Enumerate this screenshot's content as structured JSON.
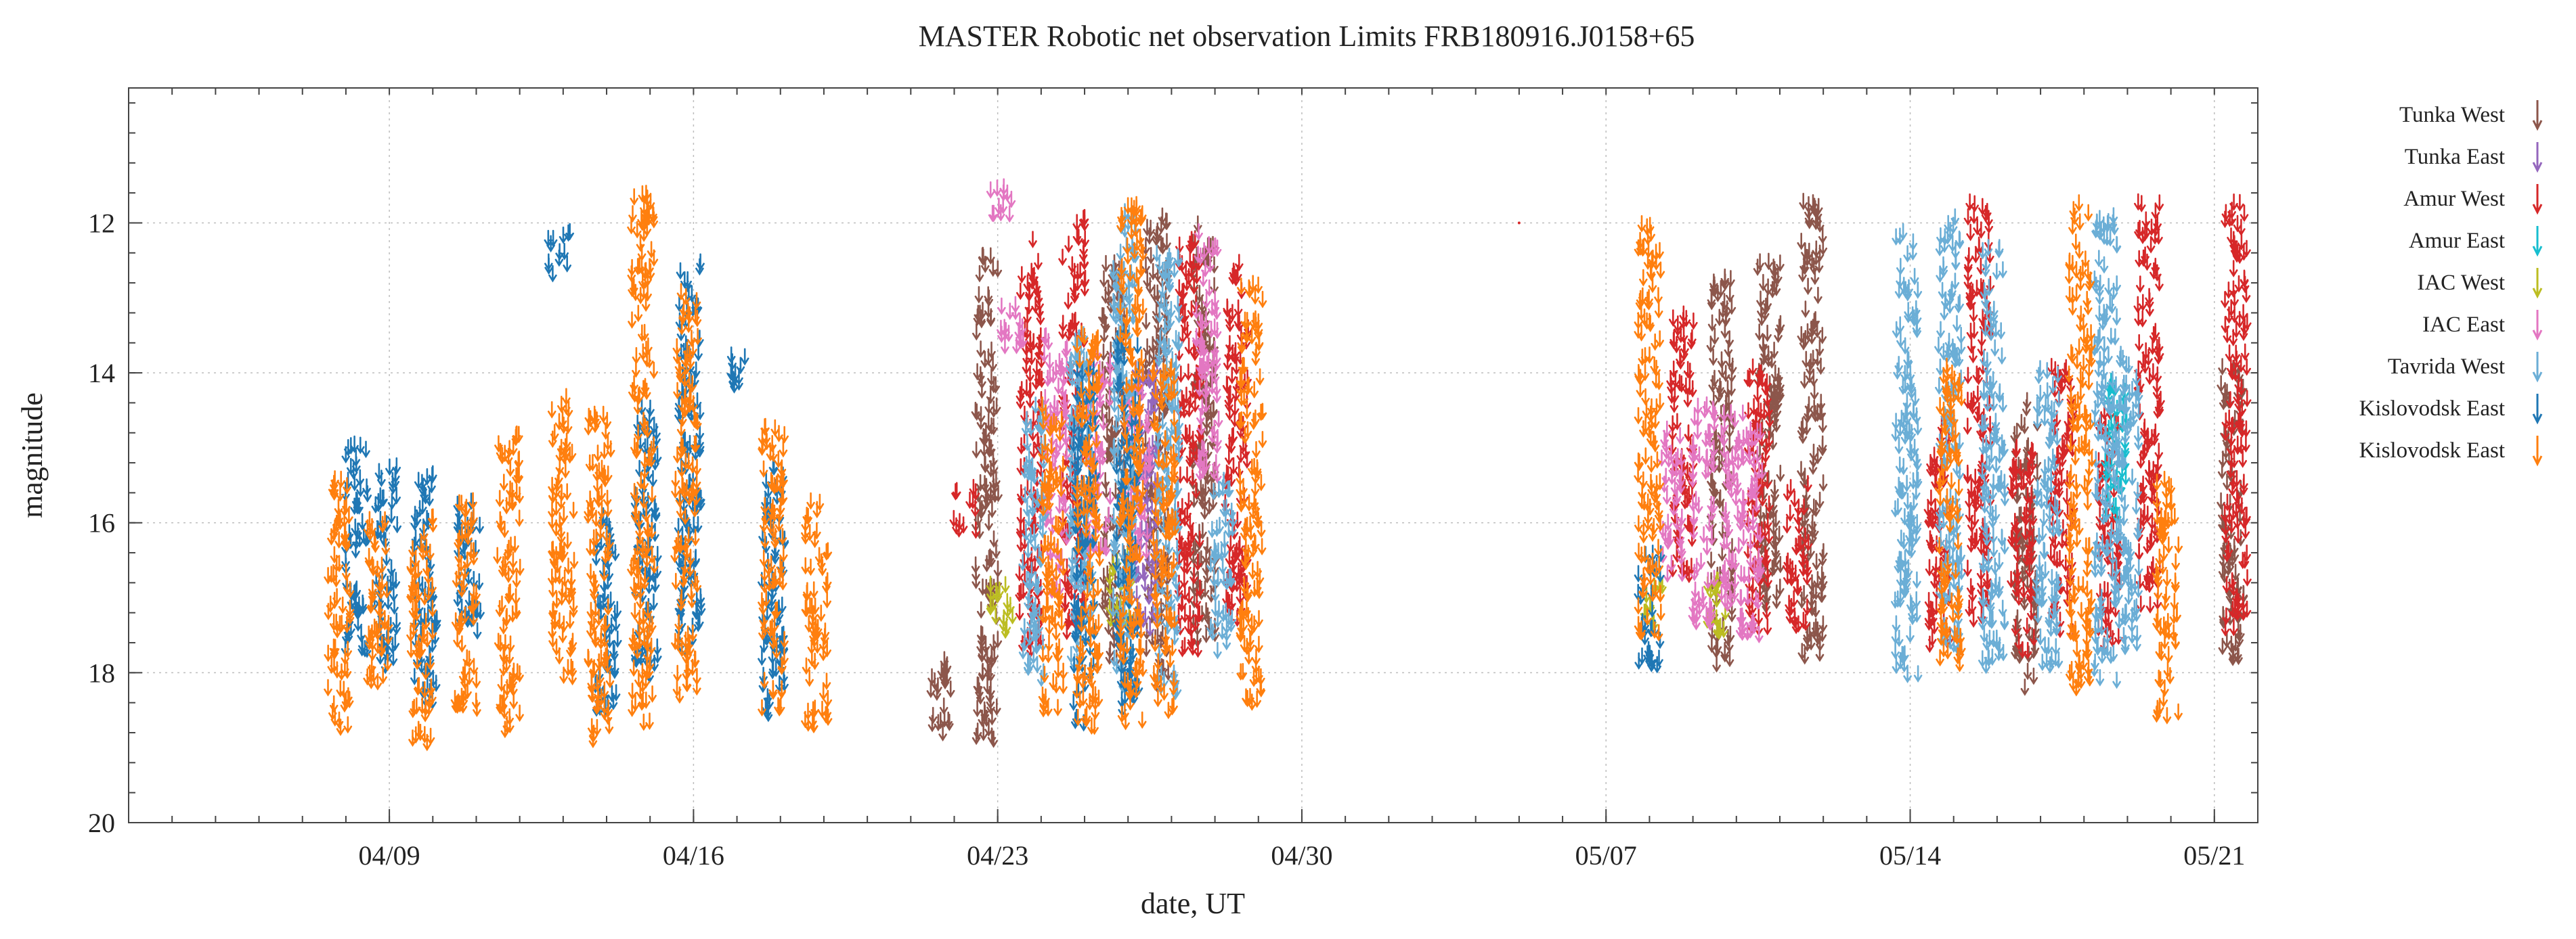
{
  "chart_data": {
    "type": "scatter",
    "marker": "down-arrow",
    "title": "MASTER Robotic net observation Limits  FRB180916.J0158+65",
    "xlabel": "date, UT",
    "ylabel": "magnitude",
    "x_domain": [
      "2019-04-03",
      "2019-05-22"
    ],
    "x_ticks": [
      {
        "date": "2019-04-09",
        "label": "04/09"
      },
      {
        "date": "2019-04-16",
        "label": "04/16"
      },
      {
        "date": "2019-04-23",
        "label": "04/23"
      },
      {
        "date": "2019-04-30",
        "label": "04/30"
      },
      {
        "date": "2019-05-07",
        "label": "05/07"
      },
      {
        "date": "2019-05-14",
        "label": "05/14"
      },
      {
        "date": "2019-05-21",
        "label": "05/21"
      }
    ],
    "ylim": [
      20,
      10.2
    ],
    "y_inverted": true,
    "y_ticks": [
      12,
      14,
      16,
      18,
      20
    ],
    "grid": true,
    "legend_position": "right",
    "series": [
      {
        "name": "Tunka West",
        "color": "#8c564b",
        "points": [
          {
            "x": "2019-04-21 16:00",
            "ymin": 17.8,
            "ymax": 18.9
          },
          {
            "x": "2019-04-22 18:00",
            "ymin": 12.5,
            "ymax": 19.0
          },
          {
            "x": "2019-04-25 16:00",
            "ymin": 12.6,
            "ymax": 18.0
          },
          {
            "x": "2019-04-26 16:00",
            "ymin": 12.0,
            "ymax": 18.3
          },
          {
            "x": "2019-04-27 18:00",
            "ymin": 12.1,
            "ymax": 17.8
          },
          {
            "x": "2019-05-09 16:00",
            "ymin": 12.8,
            "ymax": 18.0
          },
          {
            "x": "2019-05-10 18:00",
            "ymin": 12.6,
            "ymax": 17.6
          },
          {
            "x": "2019-05-11 18:00",
            "ymin": 11.8,
            "ymax": 17.9
          },
          {
            "x": "2019-05-16 16:00",
            "ymin": 14.4,
            "ymax": 18.3
          },
          {
            "x": "2019-05-21 10:00",
            "ymin": 14.0,
            "ymax": 17.9
          }
        ]
      },
      {
        "name": "Tunka East",
        "color": "#9467bd",
        "points": [
          {
            "x": "2019-04-26 10:00",
            "ymin": 14.0,
            "ymax": 17.5
          }
        ]
      },
      {
        "name": "Amur West",
        "color": "#d62728",
        "points": [
          {
            "x": "2019-04-22 06:00",
            "ymin": 15.6,
            "ymax": 16.2
          },
          {
            "x": "2019-04-23 18:00",
            "ymin": 12.3,
            "ymax": 17.8
          },
          {
            "x": "2019-04-24 18:00",
            "ymin": 12.0,
            "ymax": 17.6
          },
          {
            "x": "2019-04-27 10:00",
            "ymin": 12.3,
            "ymax": 17.8
          },
          {
            "x": "2019-04-28 12:00",
            "ymin": 12.6,
            "ymax": 17.4
          },
          {
            "x": "2019-05-08 18:00",
            "ymin": 13.2,
            "ymax": 16.8
          },
          {
            "x": "2019-05-10 12:00",
            "ymin": 14.0,
            "ymax": 17.5
          },
          {
            "x": "2019-05-11 10:00",
            "ymin": 15.5,
            "ymax": 17.5
          },
          {
            "x": "2019-05-14 16:00",
            "ymin": 14.8,
            "ymax": 17.8
          },
          {
            "x": "2019-05-15 14:00",
            "ymin": 11.8,
            "ymax": 17.4
          },
          {
            "x": "2019-05-16 14:00",
            "ymin": 15.0,
            "ymax": 17.8
          },
          {
            "x": "2019-05-17 12:00",
            "ymin": 14.0,
            "ymax": 17.6
          },
          {
            "x": "2019-05-18 14:00",
            "ymin": 14.5,
            "ymax": 17.8
          },
          {
            "x": "2019-05-19 12:00",
            "ymin": 11.8,
            "ymax": 17.2
          },
          {
            "x": "2019-05-21 12:00",
            "ymin": 11.8,
            "ymax": 17.5
          }
        ]
      },
      {
        "name": "Amur East",
        "color": "#17becf",
        "points": [
          {
            "x": "2019-05-18 18:00",
            "ymin": 14.2,
            "ymax": 16.0
          }
        ]
      },
      {
        "name": "IAC West",
        "color": "#bcbd22",
        "points": [
          {
            "x": "2019-04-23 02:00",
            "ymin": 16.8,
            "ymax": 17.6
          },
          {
            "x": "2019-04-25 20:00",
            "ymin": 16.5,
            "ymax": 17.4
          },
          {
            "x": "2019-05-08 02:00",
            "ymin": 16.9,
            "ymax": 17.5
          },
          {
            "x": "2019-05-09 12:00",
            "ymin": 16.8,
            "ymax": 17.6
          }
        ]
      },
      {
        "name": "IAC East",
        "color": "#e377c2",
        "points": [
          {
            "x": "2019-04-23 02:00",
            "ymin": 11.6,
            "ymax": 12.0
          },
          {
            "x": "2019-04-23 08:00",
            "ymin": 13.0,
            "ymax": 13.8
          },
          {
            "x": "2019-04-24 08:00",
            "ymin": 13.6,
            "ymax": 17.0
          },
          {
            "x": "2019-04-25 08:00",
            "ymin": 13.8,
            "ymax": 16.5
          },
          {
            "x": "2019-04-26 06:00",
            "ymin": 14.2,
            "ymax": 16.5
          },
          {
            "x": "2019-04-27 20:00",
            "ymin": 12.2,
            "ymax": 15.5
          },
          {
            "x": "2019-05-08 12:00",
            "ymin": 14.8,
            "ymax": 16.8
          },
          {
            "x": "2019-05-09 06:00",
            "ymin": 14.5,
            "ymax": 17.5
          },
          {
            "x": "2019-05-09 22:00",
            "ymin": 14.6,
            "ymax": 17.2
          },
          {
            "x": "2019-05-10 08:00",
            "ymin": 14.8,
            "ymax": 17.6
          }
        ]
      },
      {
        "name": "Tavrida West",
        "color": "#6baed6",
        "points": [
          {
            "x": "2019-04-23 20:00",
            "ymin": 14.5,
            "ymax": 18.2
          },
          {
            "x": "2019-04-24 22:00",
            "ymin": 13.5,
            "ymax": 18.0
          },
          {
            "x": "2019-04-25 22:00",
            "ymin": 11.9,
            "ymax": 18.4
          },
          {
            "x": "2019-04-26 22:00",
            "ymin": 12.4,
            "ymax": 18.4
          },
          {
            "x": "2019-04-28 04:00",
            "ymin": 15.5,
            "ymax": 17.8
          },
          {
            "x": "2019-05-13 22:00",
            "ymin": 12.1,
            "ymax": 18.2
          },
          {
            "x": "2019-05-14 22:00",
            "ymin": 12.0,
            "ymax": 17.8
          },
          {
            "x": "2019-05-15 22:00",
            "ymin": 12.4,
            "ymax": 18.0
          },
          {
            "x": "2019-05-17 04:00",
            "ymin": 14.0,
            "ymax": 18.0
          },
          {
            "x": "2019-05-18 12:00",
            "ymin": 12.0,
            "ymax": 18.2
          },
          {
            "x": "2019-05-19 00:00",
            "ymin": 13.8,
            "ymax": 17.8
          }
        ]
      },
      {
        "name": "Kislovodsk East",
        "color": "#1f77b4",
        "points": [
          {
            "x": "2019-04-08 06:00",
            "ymin": 15.0,
            "ymax": 17.8
          },
          {
            "x": "2019-04-08 22:00",
            "ymin": 15.3,
            "ymax": 18.0
          },
          {
            "x": "2019-04-09 20:00",
            "ymin": 15.4,
            "ymax": 18.5
          },
          {
            "x": "2019-04-10 20:00",
            "ymin": 15.8,
            "ymax": 17.6
          },
          {
            "x": "2019-04-12 22:00",
            "ymin": 12.2,
            "ymax": 12.8
          },
          {
            "x": "2019-04-14 00:00",
            "ymin": 16.0,
            "ymax": 18.6
          },
          {
            "x": "2019-04-14 22:00",
            "ymin": 14.5,
            "ymax": 18.2
          },
          {
            "x": "2019-04-15 22:00",
            "ymin": 12.6,
            "ymax": 18.0
          },
          {
            "x": "2019-04-16 22:00",
            "ymin": 13.8,
            "ymax": 14.3
          },
          {
            "x": "2019-04-17 20:00",
            "ymin": 15.2,
            "ymax": 18.7
          },
          {
            "x": "2019-04-25 00:00",
            "ymin": 14.0,
            "ymax": 18.8
          },
          {
            "x": "2019-04-26 00:00",
            "ymin": 13.5,
            "ymax": 18.6
          },
          {
            "x": "2019-05-08 00:00",
            "ymin": 16.5,
            "ymax": 18.0
          }
        ]
      },
      {
        "name": "Kislovodsk East",
        "color": "#ff7f0e",
        "points": [
          {
            "x": "2019-04-07 20:00",
            "ymin": 15.5,
            "ymax": 18.9
          },
          {
            "x": "2019-04-08 18:00",
            "ymin": 16.0,
            "ymax": 18.3
          },
          {
            "x": "2019-04-09 18:00",
            "ymin": 16.0,
            "ymax": 19.1
          },
          {
            "x": "2019-04-10 18:00",
            "ymin": 15.8,
            "ymax": 18.6
          },
          {
            "x": "2019-04-11 18:00",
            "ymin": 14.9,
            "ymax": 18.9
          },
          {
            "x": "2019-04-13 00:00",
            "ymin": 14.3,
            "ymax": 18.3
          },
          {
            "x": "2019-04-13 20:00",
            "ymin": 14.6,
            "ymax": 19.1
          },
          {
            "x": "2019-04-14 20:00",
            "ymin": 11.6,
            "ymax": 18.8
          },
          {
            "x": "2019-04-15 20:00",
            "ymin": 13.0,
            "ymax": 18.4
          },
          {
            "x": "2019-04-17 20:00",
            "ymin": 14.8,
            "ymax": 18.6
          },
          {
            "x": "2019-04-18 20:00",
            "ymin": 15.8,
            "ymax": 18.8
          },
          {
            "x": "2019-04-24 06:00",
            "ymin": 14.5,
            "ymax": 18.6
          },
          {
            "x": "2019-04-25 02:00",
            "ymin": 13.5,
            "ymax": 18.9
          },
          {
            "x": "2019-04-26 02:00",
            "ymin": 11.8,
            "ymax": 18.8
          },
          {
            "x": "2019-04-26 20:00",
            "ymin": 14.0,
            "ymax": 18.6
          },
          {
            "x": "2019-04-28 20:00",
            "ymin": 12.8,
            "ymax": 18.5
          },
          {
            "x": "2019-05-08 00:00",
            "ymin": 12.0,
            "ymax": 17.6
          },
          {
            "x": "2019-05-14 22:00",
            "ymin": 14.0,
            "ymax": 18.0
          },
          {
            "x": "2019-05-17 22:00",
            "ymin": 11.8,
            "ymax": 18.3
          },
          {
            "x": "2019-05-19 22:00",
            "ymin": 15.5,
            "ymax": 18.7
          }
        ]
      }
    ],
    "outliers": [
      {
        "x": "2019-05-05 00:00",
        "y": 12.0,
        "color": "#d62728"
      }
    ]
  }
}
